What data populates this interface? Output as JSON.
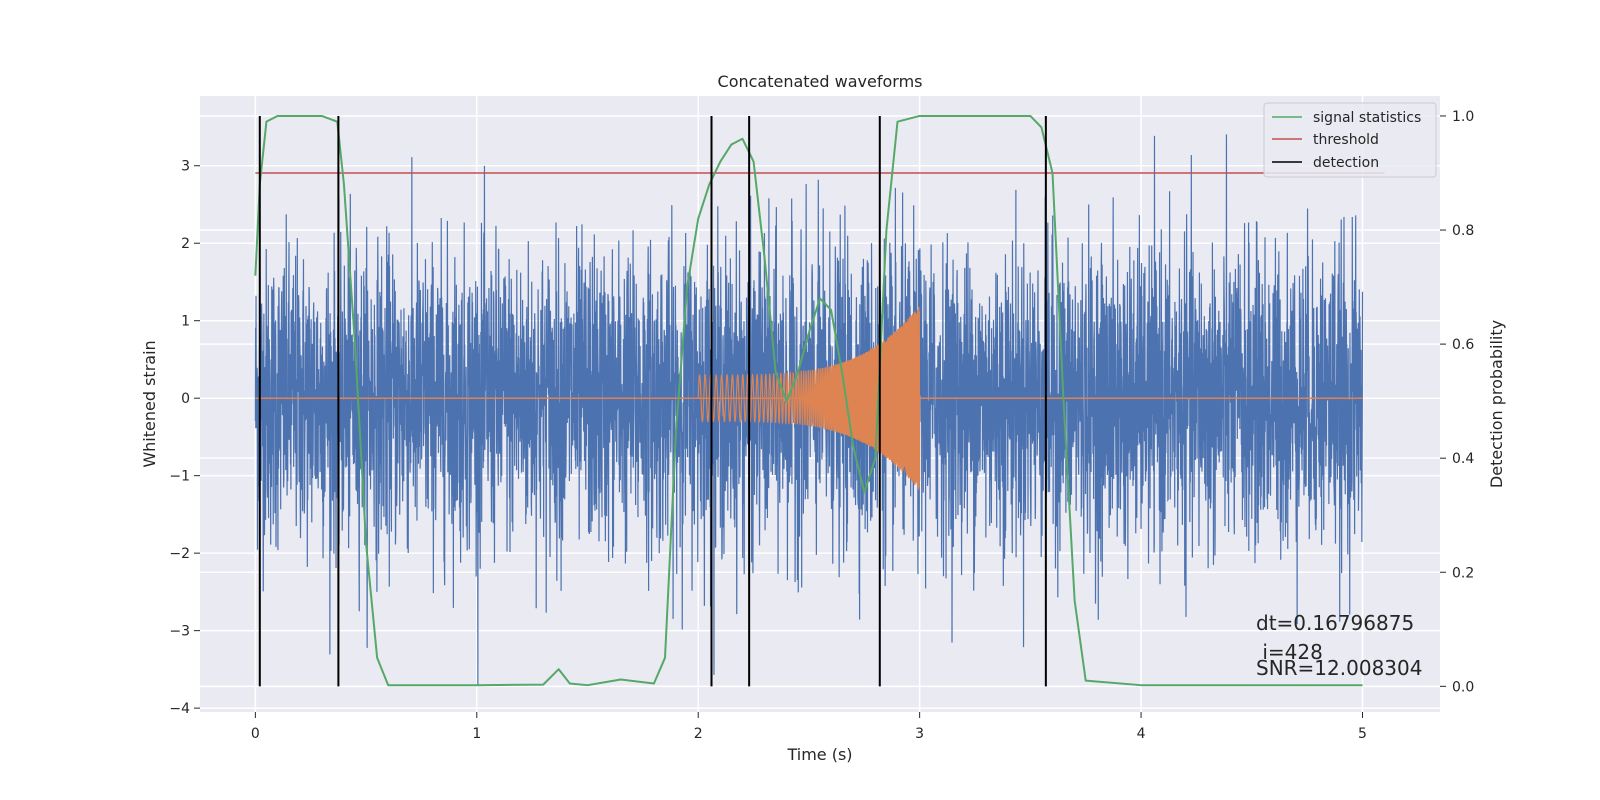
{
  "chart_data": {
    "type": "line",
    "title": "Concatenated waveforms",
    "xlabel": "Time (s)",
    "ylabel_left": "Whitened strain",
    "ylabel_right": "Detection probability",
    "xlim": [
      -0.25,
      5.35
    ],
    "ylim_left": [
      -4.05,
      3.9
    ],
    "ylim_right": [
      -0.045,
      1.035
    ],
    "xticks": [
      0,
      1,
      2,
      3,
      4,
      5
    ],
    "yticks_left": [
      -4,
      -3,
      -2,
      -1,
      0,
      1,
      2,
      3
    ],
    "yticks_right": [
      0.0,
      0.2,
      0.4,
      0.6,
      0.8,
      1.0
    ],
    "ytick_labels_left": [
      "−4",
      "−3",
      "−2",
      "−1",
      "0",
      "1",
      "2",
      "3"
    ],
    "ytick_labels_right": [
      "0.0",
      "0.2",
      "0.4",
      "0.6",
      "0.8",
      "1.0"
    ],
    "grid": true,
    "legend_position": "top-right",
    "legend": [
      {
        "label": "signal statistics",
        "color": "#55a868"
      },
      {
        "label": "threshold",
        "color": "#c44e52"
      },
      {
        "label": "detection",
        "color": "#000000"
      }
    ],
    "colors": {
      "strain": "#4c72b0",
      "template": "#dd8452",
      "statistics": "#55a868",
      "threshold": "#c44e52",
      "detection": "#000000",
      "background": "#eaeaf2"
    },
    "series": [
      {
        "role": "whitened strain",
        "axis": "left",
        "x_range": [
          0,
          5
        ],
        "ymin": -3.7,
        "ymax": 3.6
      },
      {
        "role": "template waveform",
        "axis": "left",
        "x_range": [
          2,
          3
        ],
        "amplitude_start": 0.3,
        "amplitude_end": 1.2
      },
      {
        "name": "signal statistics",
        "axis": "right",
        "x": [
          0.0,
          0.02,
          0.05,
          0.1,
          0.3,
          0.37,
          0.4,
          0.45,
          0.5,
          0.55,
          0.6,
          1.0,
          1.3,
          1.37,
          1.42,
          1.5,
          1.65,
          1.8,
          1.85,
          1.9,
          1.95,
          2.0,
          2.05,
          2.1,
          2.15,
          2.2,
          2.25,
          2.3,
          2.35,
          2.4,
          2.45,
          2.5,
          2.55,
          2.6,
          2.65,
          2.7,
          2.75,
          2.8,
          2.85,
          2.9,
          3.0,
          3.5,
          3.55,
          3.6,
          3.65,
          3.7,
          3.75,
          4.0,
          5.0
        ],
        "y": [
          0.72,
          0.88,
          0.99,
          1.0,
          1.0,
          0.99,
          0.88,
          0.6,
          0.25,
          0.05,
          0.002,
          0.002,
          0.003,
          0.03,
          0.005,
          0.002,
          0.012,
          0.005,
          0.05,
          0.45,
          0.7,
          0.82,
          0.88,
          0.92,
          0.95,
          0.96,
          0.92,
          0.75,
          0.55,
          0.5,
          0.55,
          0.62,
          0.68,
          0.66,
          0.55,
          0.42,
          0.34,
          0.4,
          0.8,
          0.99,
          1.0,
          1.0,
          0.98,
          0.9,
          0.5,
          0.15,
          0.01,
          0.002,
          0.002
        ]
      },
      {
        "name": "threshold",
        "axis": "right",
        "x": [
          0,
          5.1
        ],
        "y": [
          0.9,
          0.9
        ]
      }
    ],
    "detections_x": [
      0.02,
      0.375,
      2.06,
      2.23,
      2.82,
      3.57
    ],
    "detection_yrange_right": [
      0.0,
      1.0
    ]
  },
  "annotation": {
    "dt": "dt=0.16796875",
    "i": " i=428",
    "snr": "SNR=12.008304"
  }
}
